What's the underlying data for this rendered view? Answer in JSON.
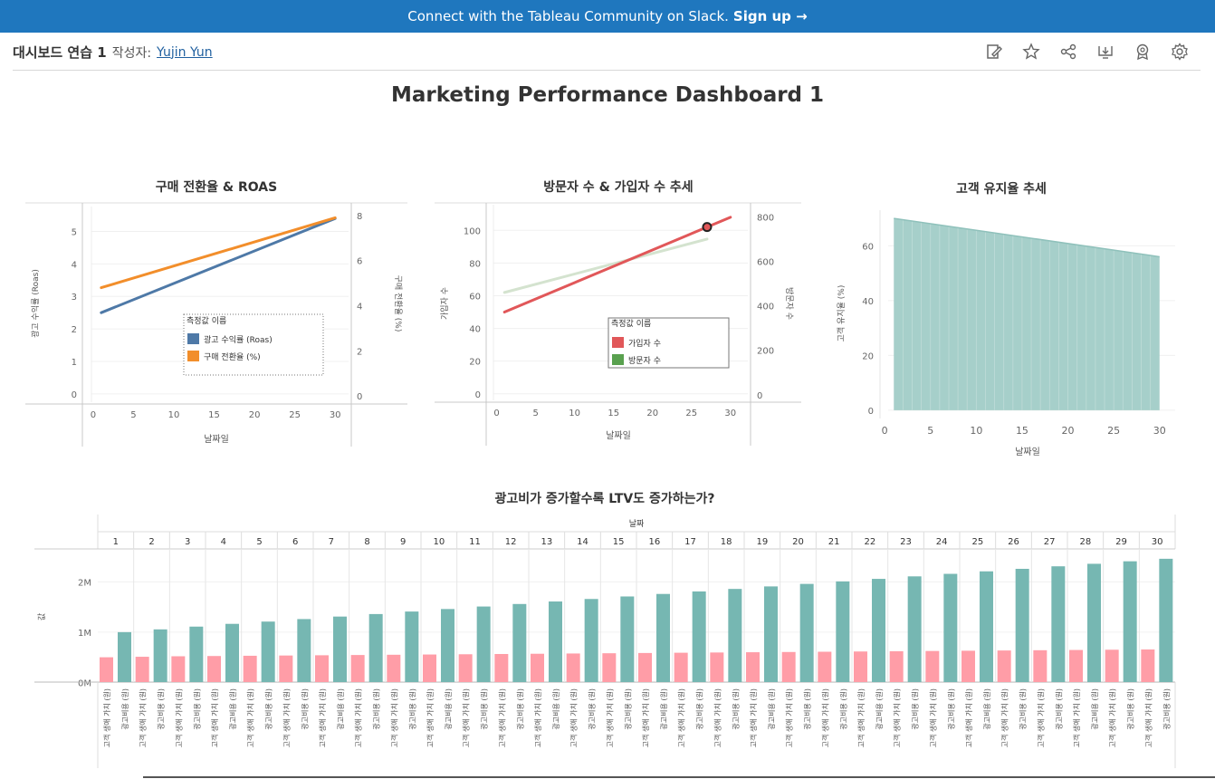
{
  "banner": {
    "text": "Connect with the Tableau Community on Slack.",
    "cta": "Sign up →"
  },
  "header": {
    "title": "대시보드 연습 1",
    "by_label": "작성자:",
    "author": "Yujin Yun"
  },
  "toolbar_icons": [
    "edit-icon",
    "star-icon",
    "share-icon",
    "download-icon",
    "badge-icon",
    "gear-icon"
  ],
  "dashboard_title": "Marketing Performance Dashboard 1",
  "colors": {
    "banner": "#1f77be",
    "roas": "#4e79a7",
    "conversion": "#f28e2b",
    "signup": "#e15759",
    "visitor": "#59a14f",
    "visitor_faded": "#d4e3cf",
    "retention": "#a6cfca",
    "ltv": "#76b7b2",
    "adcost": "#ff9da7"
  },
  "chart_data": [
    {
      "type": "line",
      "title": "구매 전환율 & ROAS",
      "xlabel": "날짜일",
      "ylabel_left": "광고 수익률 (Roas)",
      "ylabel_right": "구매 전환율 (%)",
      "xlim": [
        -1,
        32
      ],
      "xticks": [
        0,
        5,
        10,
        15,
        20,
        25,
        30
      ],
      "ylim_left": [
        -0.2,
        5.6
      ],
      "yticks_left": [
        0,
        1,
        2,
        3,
        4,
        5
      ],
      "ylim_right": [
        -0.2,
        8.2
      ],
      "yticks_right": [
        0,
        2,
        4,
        6,
        8
      ],
      "legend_title": "측정값 이름",
      "series": [
        {
          "name": "광고 수익률 (Roas)",
          "axis": "left",
          "x": [
            1,
            30
          ],
          "y": [
            2.5,
            5.4
          ]
        },
        {
          "name": "구매 전환율 (%)",
          "axis": "right",
          "x": [
            1,
            30
          ],
          "y": [
            4.8,
            7.9
          ]
        }
      ]
    },
    {
      "type": "line",
      "title": "방문자 수 & 가입자 수 추세",
      "xlabel": "날짜일",
      "ylabel_left": "가입자 수",
      "ylabel_right": "방문자 수",
      "xlim": [
        -1,
        32
      ],
      "xticks": [
        0,
        5,
        10,
        15,
        20,
        25,
        30
      ],
      "ylim_left": [
        -4,
        114
      ],
      "yticks_left": [
        0,
        20,
        40,
        60,
        80,
        100
      ],
      "ylim_right": [
        -25,
        830
      ],
      "yticks_right": [
        0,
        200,
        400,
        600,
        800
      ],
      "legend_title": "측정값 이름",
      "series": [
        {
          "name": "가입자 수",
          "axis": "left",
          "x": [
            1,
            30
          ],
          "y": [
            50,
            108
          ]
        },
        {
          "name": "방문자 수",
          "axis": "right",
          "x": [
            1,
            27
          ],
          "y": [
            460,
            700
          ]
        }
      ],
      "highlight": {
        "series": "가입자 수",
        "x": 27,
        "y": 102
      }
    },
    {
      "type": "area",
      "title": "고객 유지율 추세",
      "xlabel": "날짜일",
      "ylabel": "고객 유지율 (%)",
      "xlim": [
        -1,
        32
      ],
      "xticks": [
        0,
        5,
        10,
        15,
        20,
        25,
        30
      ],
      "ylim": [
        -3,
        73
      ],
      "yticks": [
        0,
        20,
        40,
        60
      ],
      "x": [
        1,
        30
      ],
      "y": [
        70,
        56
      ]
    },
    {
      "type": "bar",
      "title": "광고비가 증가할수록 LTV도 증가하는가?",
      "column_header": "날짜",
      "ylabel": "값",
      "ylim": [
        -120000,
        2620000
      ],
      "yticks": [
        0,
        1000000,
        2000000
      ],
      "ytick_labels": [
        "0M",
        "1M",
        "2M"
      ],
      "categories": [
        1,
        2,
        3,
        4,
        5,
        6,
        7,
        8,
        9,
        10,
        11,
        12,
        13,
        14,
        15,
        16,
        17,
        18,
        19,
        20,
        21,
        22,
        23,
        24,
        25,
        26,
        27,
        28,
        29,
        30
      ],
      "bar_labels": [
        "고객 생애 가치 (원)",
        "광고비용 (원)"
      ],
      "series": [
        {
          "name": "고객 생애 가치 (원)",
          "values": [
            500000,
            510000,
            520000,
            525000,
            530000,
            535000,
            540000,
            545000,
            550000,
            555000,
            560000,
            565000,
            570000,
            575000,
            580000,
            585000,
            590000,
            595000,
            600000,
            605000,
            610000,
            615000,
            620000,
            625000,
            630000,
            635000,
            640000,
            645000,
            650000,
            655000
          ]
        },
        {
          "name": "광고비용 (원)",
          "values": [
            1000000,
            1055000,
            1110000,
            1165000,
            1210000,
            1260000,
            1310000,
            1360000,
            1410000,
            1460000,
            1510000,
            1560000,
            1610000,
            1660000,
            1710000,
            1760000,
            1810000,
            1860000,
            1910000,
            1960000,
            2010000,
            2060000,
            2110000,
            2160000,
            2210000,
            2260000,
            2310000,
            2360000,
            2410000,
            2460000
          ]
        }
      ]
    }
  ]
}
